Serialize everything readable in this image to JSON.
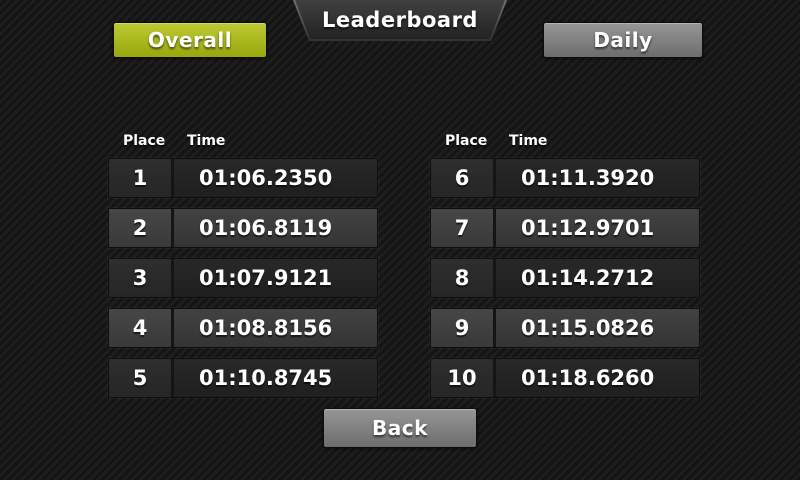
{
  "title": "Leaderboard",
  "tabs": {
    "overall": {
      "label": "Overall",
      "active": true
    },
    "daily": {
      "label": "Daily",
      "active": false
    }
  },
  "columns": [
    {
      "place_header": "Place",
      "time_header": "Time",
      "rows": [
        {
          "place": "1",
          "time": "01:06.2350"
        },
        {
          "place": "2",
          "time": "01:06.8119"
        },
        {
          "place": "3",
          "time": "01:07.9121"
        },
        {
          "place": "4",
          "time": "01:08.8156"
        },
        {
          "place": "5",
          "time": "01:10.8745"
        }
      ]
    },
    {
      "place_header": "Place",
      "time_header": "Time",
      "rows": [
        {
          "place": "6",
          "time": "01:11.3920"
        },
        {
          "place": "7",
          "time": "01:12.9701"
        },
        {
          "place": "8",
          "time": "01:14.2712"
        },
        {
          "place": "9",
          "time": "01:15.0826"
        },
        {
          "place": "10",
          "time": "01:18.6260"
        }
      ]
    }
  ],
  "back_label": "Back",
  "colors": {
    "accent_active_tab": "#aab81e",
    "button_gray": "#7d7d7d",
    "background": "#181818",
    "text": "#ffffff"
  }
}
